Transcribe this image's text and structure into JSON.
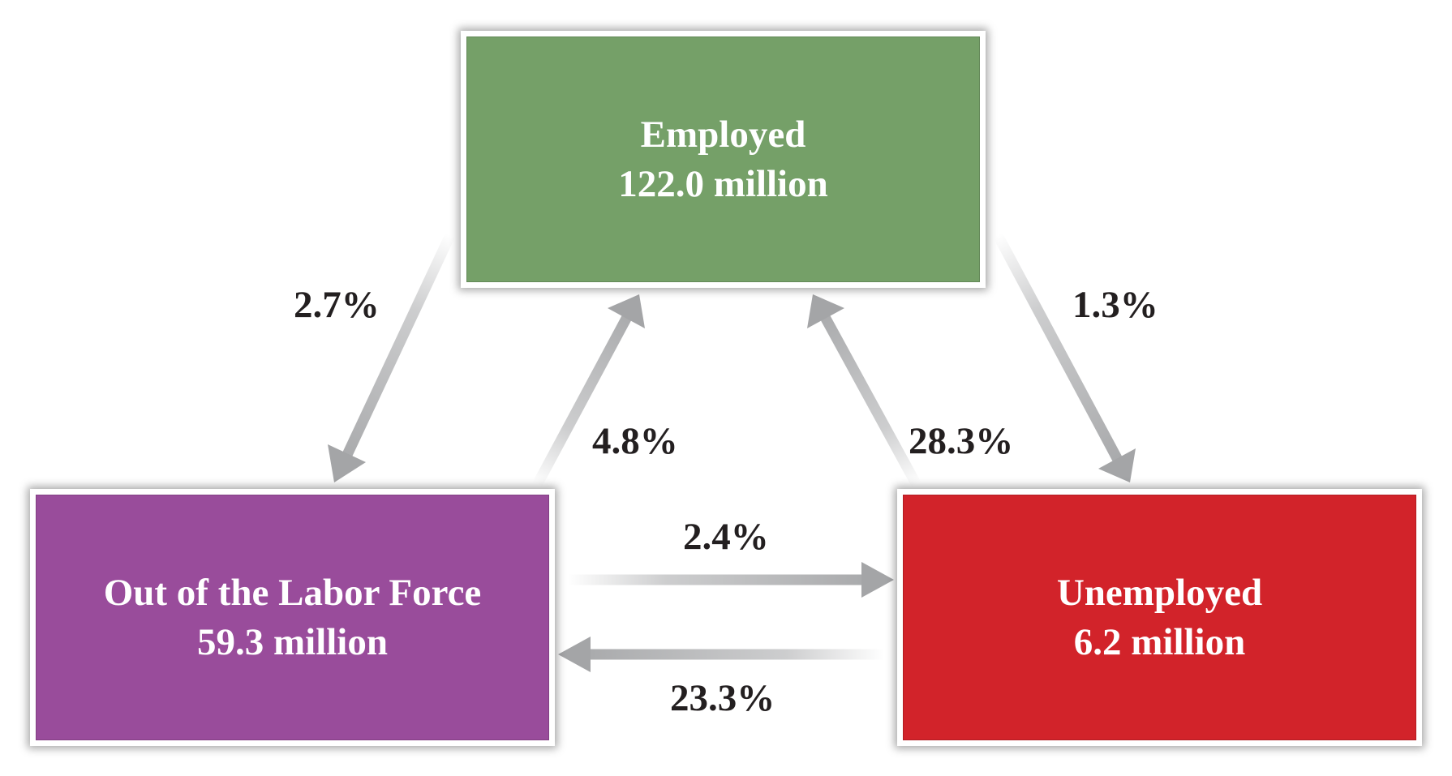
{
  "states": {
    "employed": {
      "label": "Employed",
      "count": "122.0 million",
      "color": "#75a068"
    },
    "out_of_labor_force": {
      "label": "Out of the Labor Force",
      "count": "59.3 million",
      "color": "#994c9b"
    },
    "unemployed": {
      "label": "Unemployed",
      "count": "6.2 million",
      "color": "#d2232a"
    }
  },
  "flows": {
    "employed_to_out_of_labor_force": "2.7%",
    "out_of_labor_force_to_employed": "4.8%",
    "unemployed_to_employed": "28.3%",
    "employed_to_unemployed": "1.3%",
    "out_of_labor_force_to_unemployed": "2.4%",
    "unemployed_to_out_of_labor_force": "23.3%"
  },
  "colors": {
    "arrow": "#a4a5a7",
    "label_text": "#231f20"
  }
}
